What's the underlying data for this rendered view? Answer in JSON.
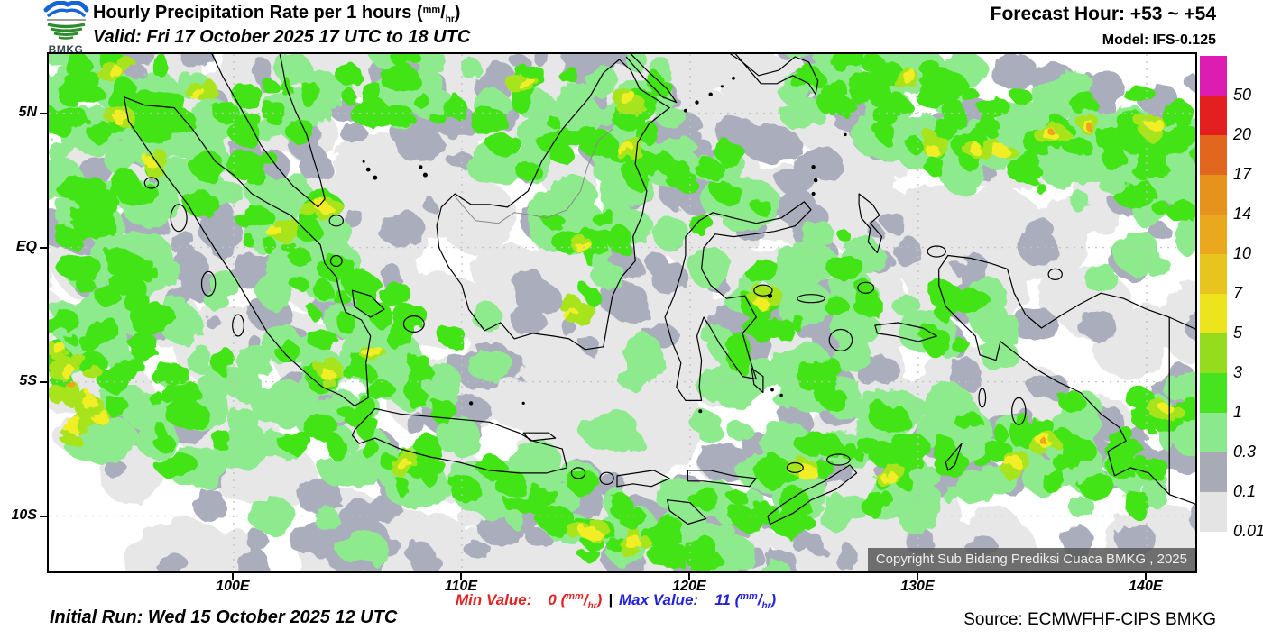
{
  "unit": {
    "open": "(",
    "num": "mm",
    "slash": "/",
    "den": "hr",
    "close": ")"
  },
  "header": {
    "logo_text": "BMKG",
    "title_main": "Hourly Precipitation Rate per 1 hours ",
    "valid": "Valid: Fri 17 October 2025 17 UTC to 18 UTC",
    "forecast_hour": "Forecast Hour: +53 ~ +54",
    "model": "Model: IFS-0.125"
  },
  "map": {
    "copyright": "Copyright Sub Bidang Prediksi Cuaca BMKG , 2025"
  },
  "axes": {
    "lat": [
      {
        "label": "5N",
        "deg": 5
      },
      {
        "label": "EQ",
        "deg": 0
      },
      {
        "label": "5S",
        "deg": -5
      },
      {
        "label": "10S",
        "deg": -10
      }
    ],
    "lon": [
      {
        "label": "100E",
        "deg": 100
      },
      {
        "label": "110E",
        "deg": 110
      },
      {
        "label": "120E",
        "deg": 120
      },
      {
        "label": "130E",
        "deg": 130
      },
      {
        "label": "140E",
        "deg": 140
      }
    ]
  },
  "colorbar": {
    "levels": [
      {
        "color": "#dd1cb2",
        "label": "50"
      },
      {
        "color": "#e41f1f",
        "label": "20"
      },
      {
        "color": "#e2661e",
        "label": "17"
      },
      {
        "color": "#e8921e",
        "label": "14"
      },
      {
        "color": "#e9a81e",
        "label": "10"
      },
      {
        "color": "#e8c41e",
        "label": "7"
      },
      {
        "color": "#eee41e",
        "label": "5"
      },
      {
        "color": "#96dc1e",
        "label": "3"
      },
      {
        "color": "#46e41e",
        "label": "1"
      },
      {
        "color": "#8ce88c",
        "label": "0.3"
      },
      {
        "color": "#a8aab6",
        "label": "0.1"
      },
      {
        "color": "#e4e4e4",
        "label": "0.01"
      }
    ]
  },
  "map_colors": {
    "light_gray": "#e7e7e7",
    "gray": "#aaadbb",
    "light_green": "#8dea8d",
    "green": "#43e414",
    "yellow_green": "#a8e41e",
    "yellow": "#f2ee28",
    "orange": "#f0a41e",
    "grid": "#c2c2c2",
    "coast": "#000000"
  },
  "footer": {
    "initial_run": "Initial Run: Wed 15 October 2025 12 UTC",
    "min_label": "Min Value:",
    "min_value": "0",
    "separator": "|",
    "max_label": "Max Value:",
    "max_value": "11",
    "source": "Source: ECMWFHF-CIPS BMKG"
  }
}
